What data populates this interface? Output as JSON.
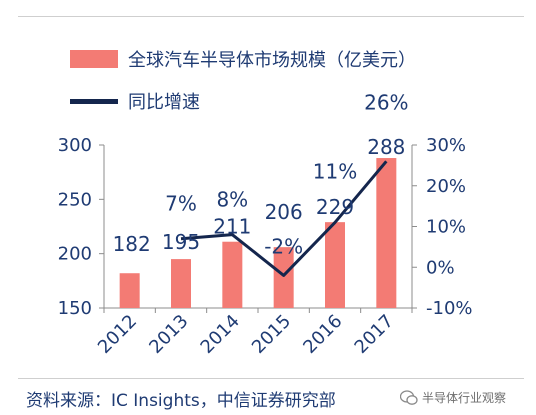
{
  "chart_data": {
    "type": "bar",
    "categories": [
      "2012",
      "2013",
      "2014",
      "2015",
      "2016",
      "2017"
    ],
    "series": [
      {
        "name": "全球汽车半导体市场规模（亿美元）",
        "type": "bar",
        "axis": "left",
        "color": "#f37b74",
        "values": [
          182,
          195,
          211,
          206,
          229,
          288
        ],
        "labels": [
          "182",
          "195",
          "211",
          "206",
          "229",
          "288"
        ]
      },
      {
        "name": "同比增速",
        "type": "line",
        "axis": "right",
        "color": "#14264d",
        "values": [
          null,
          7,
          8,
          -2,
          11,
          26
        ],
        "labels": [
          "",
          "7%",
          "8%",
          "-2%",
          "11%",
          "26%"
        ]
      }
    ],
    "y_left": {
      "min": 150,
      "max": 300,
      "ticks": [
        "150",
        "200",
        "250",
        "300"
      ]
    },
    "y_right": {
      "min": -10,
      "max": 30,
      "ticks": [
        "-10%",
        "0%",
        "10%",
        "20%",
        "30%"
      ]
    },
    "legend_position": "top-left",
    "grid": false
  },
  "footer": {
    "source": "资料来源：IC Insights，中信证券研究部",
    "watermark": "半导体行业观察",
    "watermark_icon": "wechat-icon"
  }
}
